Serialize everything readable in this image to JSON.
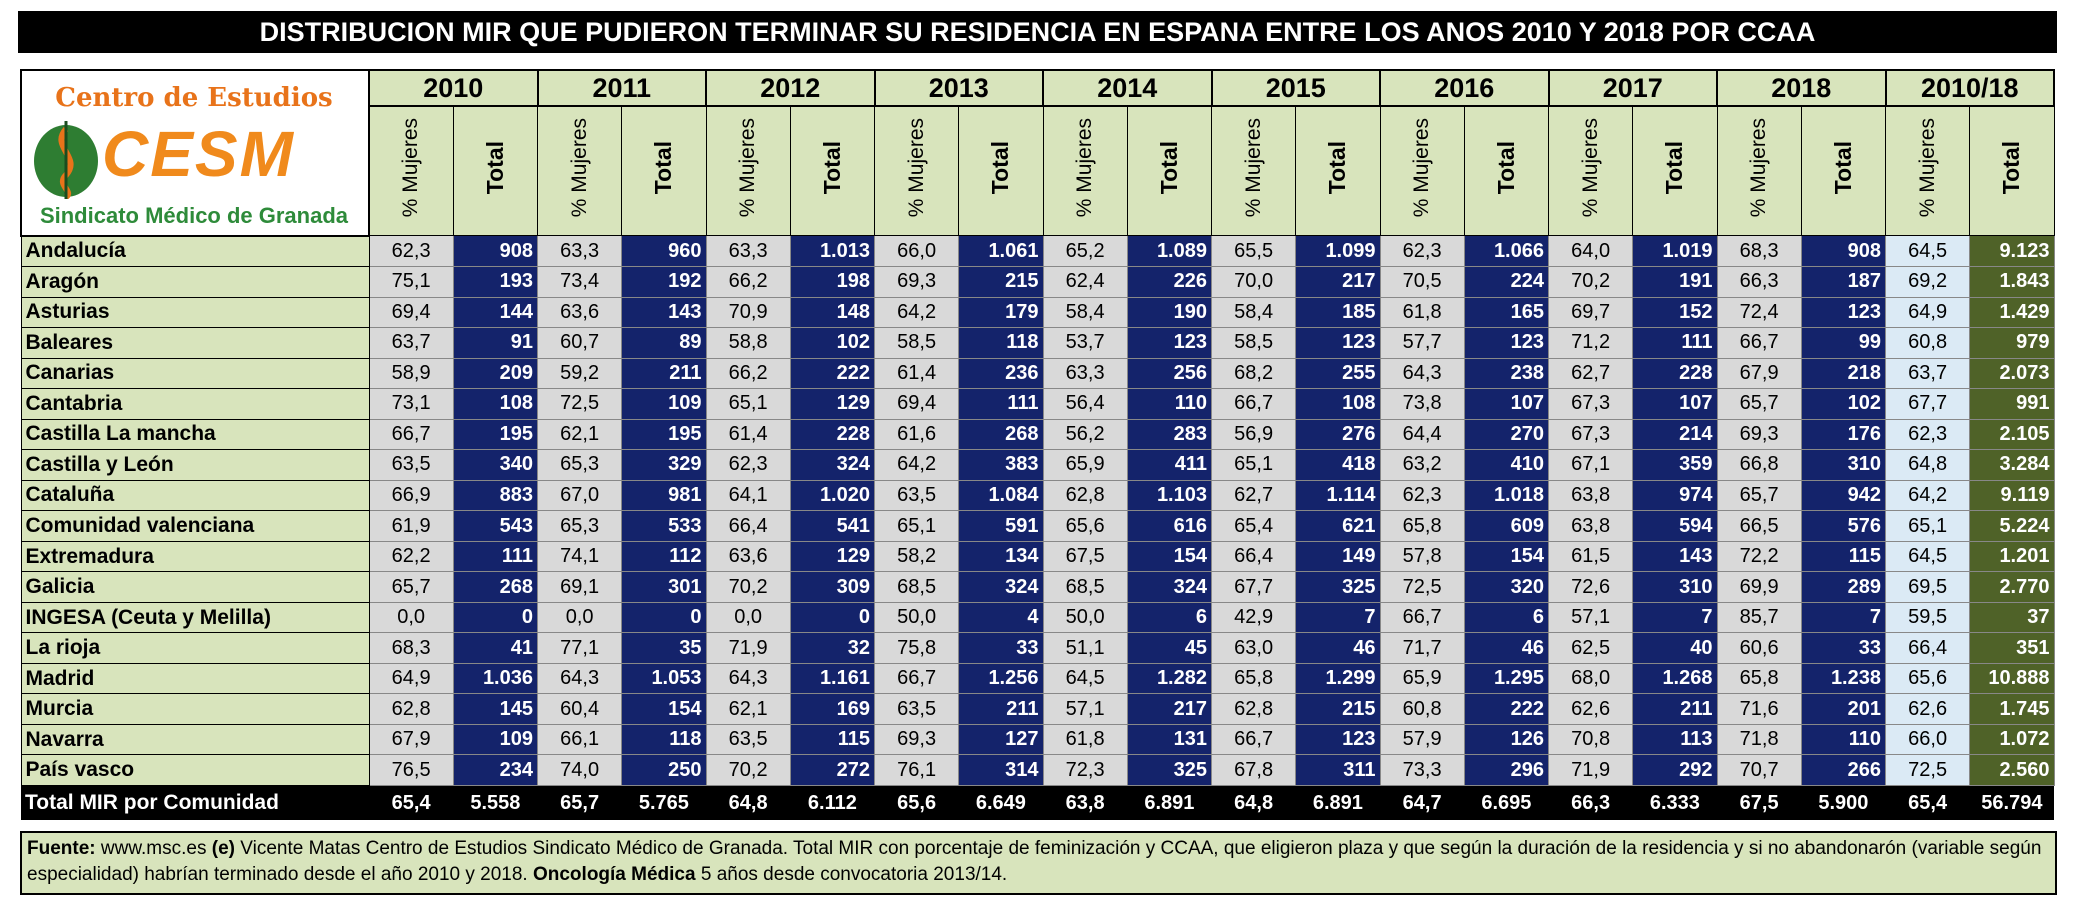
{
  "header": {
    "title": "DISTRIBUCION MIR QUE PUDIERON TERMINAR SU RESIDENCIA EN ESPANA ENTRE LOS ANOS 2010 Y 2018 POR CCAA"
  },
  "logo": {
    "top": "Centro de Estudios",
    "mark": "CESM",
    "bottom": "Sindicato Médico de Granada"
  },
  "table": {
    "years": [
      "2010",
      "2011",
      "2012",
      "2013",
      "2014",
      "2015",
      "2016",
      "2017",
      "2018",
      "2010/18"
    ],
    "subheaders": [
      "% Mujeres",
      "Total"
    ],
    "rows": [
      {
        "name": "Andalucía",
        "cells": [
          "62,3",
          "908",
          "63,3",
          "960",
          "63,3",
          "1.013",
          "66,0",
          "1.061",
          "65,2",
          "1.089",
          "65,5",
          "1.099",
          "62,3",
          "1.066",
          "64,0",
          "1.019",
          "68,3",
          "908",
          "64,5",
          "9.123"
        ]
      },
      {
        "name": "Aragón",
        "cells": [
          "75,1",
          "193",
          "73,4",
          "192",
          "66,2",
          "198",
          "69,3",
          "215",
          "62,4",
          "226",
          "70,0",
          "217",
          "70,5",
          "224",
          "70,2",
          "191",
          "66,3",
          "187",
          "69,2",
          "1.843"
        ]
      },
      {
        "name": "Asturias",
        "cells": [
          "69,4",
          "144",
          "63,6",
          "143",
          "70,9",
          "148",
          "64,2",
          "179",
          "58,4",
          "190",
          "58,4",
          "185",
          "61,8",
          "165",
          "69,7",
          "152",
          "72,4",
          "123",
          "64,9",
          "1.429"
        ]
      },
      {
        "name": "Baleares",
        "cells": [
          "63,7",
          "91",
          "60,7",
          "89",
          "58,8",
          "102",
          "58,5",
          "118",
          "53,7",
          "123",
          "58,5",
          "123",
          "57,7",
          "123",
          "71,2",
          "111",
          "66,7",
          "99",
          "60,8",
          "979"
        ]
      },
      {
        "name": "Canarias",
        "cells": [
          "58,9",
          "209",
          "59,2",
          "211",
          "66,2",
          "222",
          "61,4",
          "236",
          "63,3",
          "256",
          "68,2",
          "255",
          "64,3",
          "238",
          "62,7",
          "228",
          "67,9",
          "218",
          "63,7",
          "2.073"
        ]
      },
      {
        "name": "Cantabria",
        "cells": [
          "73,1",
          "108",
          "72,5",
          "109",
          "65,1",
          "129",
          "69,4",
          "111",
          "56,4",
          "110",
          "66,7",
          "108",
          "73,8",
          "107",
          "67,3",
          "107",
          "65,7",
          "102",
          "67,7",
          "991"
        ]
      },
      {
        "name": "Castilla La mancha",
        "cells": [
          "66,7",
          "195",
          "62,1",
          "195",
          "61,4",
          "228",
          "61,6",
          "268",
          "56,2",
          "283",
          "56,9",
          "276",
          "64,4",
          "270",
          "67,3",
          "214",
          "69,3",
          "176",
          "62,3",
          "2.105"
        ]
      },
      {
        "name": "Castilla y León",
        "cells": [
          "63,5",
          "340",
          "65,3",
          "329",
          "62,3",
          "324",
          "64,2",
          "383",
          "65,9",
          "411",
          "65,1",
          "418",
          "63,2",
          "410",
          "67,1",
          "359",
          "66,8",
          "310",
          "64,8",
          "3.284"
        ]
      },
      {
        "name": "Cataluña",
        "cells": [
          "66,9",
          "883",
          "67,0",
          "981",
          "64,1",
          "1.020",
          "63,5",
          "1.084",
          "62,8",
          "1.103",
          "62,7",
          "1.114",
          "62,3",
          "1.018",
          "63,8",
          "974",
          "65,7",
          "942",
          "64,2",
          "9.119"
        ]
      },
      {
        "name": "Comunidad valenciana",
        "cells": [
          "61,9",
          "543",
          "65,3",
          "533",
          "66,4",
          "541",
          "65,1",
          "591",
          "65,6",
          "616",
          "65,4",
          "621",
          "65,8",
          "609",
          "63,8",
          "594",
          "66,5",
          "576",
          "65,1",
          "5.224"
        ]
      },
      {
        "name": "Extremadura",
        "cells": [
          "62,2",
          "111",
          "74,1",
          "112",
          "63,6",
          "129",
          "58,2",
          "134",
          "67,5",
          "154",
          "66,4",
          "149",
          "57,8",
          "154",
          "61,5",
          "143",
          "72,2",
          "115",
          "64,5",
          "1.201"
        ]
      },
      {
        "name": "Galicia",
        "cells": [
          "65,7",
          "268",
          "69,1",
          "301",
          "70,2",
          "309",
          "68,5",
          "324",
          "68,5",
          "324",
          "67,7",
          "325",
          "72,5",
          "320",
          "72,6",
          "310",
          "69,9",
          "289",
          "69,5",
          "2.770"
        ]
      },
      {
        "name": "INGESA (Ceuta y Melilla)",
        "cells": [
          "0,0",
          "0",
          "0,0",
          "0",
          "0,0",
          "0",
          "50,0",
          "4",
          "50,0",
          "6",
          "42,9",
          "7",
          "66,7",
          "6",
          "57,1",
          "7",
          "85,7",
          "7",
          "59,5",
          "37"
        ]
      },
      {
        "name": "La rioja",
        "cells": [
          "68,3",
          "41",
          "77,1",
          "35",
          "71,9",
          "32",
          "75,8",
          "33",
          "51,1",
          "45",
          "63,0",
          "46",
          "71,7",
          "46",
          "62,5",
          "40",
          "60,6",
          "33",
          "66,4",
          "351"
        ]
      },
      {
        "name": "Madrid",
        "cells": [
          "64,9",
          "1.036",
          "64,3",
          "1.053",
          "64,3",
          "1.161",
          "66,7",
          "1.256",
          "64,5",
          "1.282",
          "65,8",
          "1.299",
          "65,9",
          "1.295",
          "68,0",
          "1.268",
          "65,8",
          "1.238",
          "65,6",
          "10.888"
        ]
      },
      {
        "name": "Murcia",
        "cells": [
          "62,8",
          "145",
          "60,4",
          "154",
          "62,1",
          "169",
          "63,5",
          "211",
          "57,1",
          "217",
          "62,8",
          "215",
          "60,8",
          "222",
          "62,6",
          "211",
          "71,6",
          "201",
          "62,6",
          "1.745"
        ]
      },
      {
        "name": "Navarra",
        "cells": [
          "67,9",
          "109",
          "66,1",
          "118",
          "63,5",
          "115",
          "69,3",
          "127",
          "61,8",
          "131",
          "66,7",
          "123",
          "57,9",
          "126",
          "70,8",
          "113",
          "71,8",
          "110",
          "66,0",
          "1.072"
        ]
      },
      {
        "name": "País vasco",
        "cells": [
          "76,5",
          "234",
          "74,0",
          "250",
          "70,2",
          "272",
          "76,1",
          "314",
          "72,3",
          "325",
          "67,8",
          "311",
          "73,3",
          "296",
          "71,9",
          "292",
          "70,7",
          "266",
          "72,5",
          "2.560"
        ]
      }
    ],
    "total": {
      "name": "Total MIR por Comunidad",
      "cells": [
        "65,4",
        "5.558",
        "65,7",
        "5.765",
        "64,8",
        "6.112",
        "65,6",
        "6.649",
        "63,8",
        "6.891",
        "64,8",
        "6.891",
        "64,7",
        "6.695",
        "66,3",
        "6.333",
        "67,5",
        "5.900",
        "65,4",
        "56.794"
      ]
    }
  },
  "footer": {
    "segments": [
      {
        "text": "Fuente:",
        "bold": true
      },
      {
        "text": "www.msc.es",
        "bold": false
      },
      {
        "text": "(e)",
        "bold": true
      },
      {
        "text": "Vicente Matas Centro de Estudios Sindicato Médico de Granada.   Total MIR con porcentaje de feminización y CCAA,  que eligieron plaza y que según la duración de la residencia y si no abandonarón (variable según especialidad) habrían terminado desde el año 2010 y 2018.",
        "bold": false
      },
      {
        "text": "Oncología Médica",
        "bold": true
      },
      {
        "text": "5 años desde convocatoria 2013/14.",
        "bold": false
      }
    ]
  }
}
